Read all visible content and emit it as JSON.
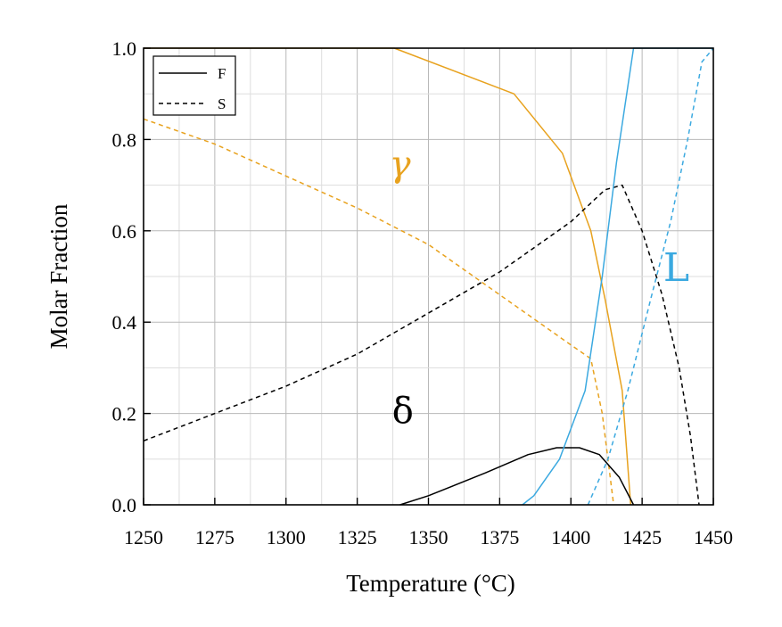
{
  "chart_data": {
    "type": "line",
    "title": "",
    "xlabel": "Temperature (°C)",
    "ylabel": "Molar Fraction",
    "xlim": [
      1250,
      1450
    ],
    "ylim": [
      0.0,
      1.0
    ],
    "x_ticks": [
      "1250",
      "1275",
      "1300",
      "1325",
      "1350",
      "1375",
      "1400",
      "1425",
      "1450"
    ],
    "y_ticks": [
      "0.0",
      "0.2",
      "0.4",
      "0.6",
      "0.8",
      "1.0"
    ],
    "grid": true,
    "legend": {
      "position": "top-left",
      "entries": [
        {
          "label": "F",
          "style": "solid"
        },
        {
          "label": "S",
          "style": "dashed"
        }
      ]
    },
    "annotations": [
      {
        "text": "γ",
        "x": 1340,
        "y": 0.72,
        "color": "#E8A21E",
        "size": 40
      },
      {
        "text": "δ",
        "x": 1341,
        "y": 0.18,
        "color": "#000000",
        "size": 40
      },
      {
        "text": "L",
        "x": 1437,
        "y": 0.49,
        "color": "#3BA9E0",
        "size": 44
      }
    ],
    "colors": {
      "gamma": "#E8A21E",
      "delta": "#000000",
      "liquid": "#3BA9E0"
    },
    "series": [
      {
        "phase": "γ",
        "style": "solid",
        "color": "#E8A21E",
        "x": [
          1250,
          1338,
          1380,
          1397,
          1407,
          1412,
          1418,
          1421
        ],
        "y": [
          1.0,
          1.0,
          0.9,
          0.77,
          0.6,
          0.45,
          0.25,
          0.0
        ]
      },
      {
        "phase": "γ",
        "style": "dashed",
        "color": "#E8A21E",
        "x": [
          1250,
          1275,
          1300,
          1325,
          1350,
          1375,
          1400,
          1407,
          1411,
          1413,
          1415
        ],
        "y": [
          0.845,
          0.79,
          0.72,
          0.65,
          0.57,
          0.46,
          0.35,
          0.32,
          0.2,
          0.1,
          0.0
        ]
      },
      {
        "phase": "δ",
        "style": "solid",
        "color": "#000000",
        "x": [
          1340,
          1350,
          1370,
          1385,
          1395,
          1403,
          1410,
          1417,
          1422
        ],
        "y": [
          0.0,
          0.02,
          0.07,
          0.11,
          0.125,
          0.125,
          0.11,
          0.06,
          0.0
        ]
      },
      {
        "phase": "δ",
        "style": "dashed",
        "color": "#000000",
        "x": [
          1250,
          1275,
          1300,
          1325,
          1350,
          1375,
          1400,
          1412,
          1418,
          1425,
          1432,
          1438,
          1442,
          1445
        ],
        "y": [
          0.14,
          0.2,
          0.26,
          0.33,
          0.42,
          0.51,
          0.62,
          0.69,
          0.7,
          0.6,
          0.46,
          0.3,
          0.15,
          0.0
        ]
      },
      {
        "phase": "L",
        "style": "solid",
        "color": "#3BA9E0",
        "x": [
          1383,
          1387,
          1396,
          1405,
          1411,
          1416,
          1422,
          1450
        ],
        "y": [
          0.0,
          0.02,
          0.1,
          0.25,
          0.5,
          0.75,
          1.0,
          1.0
        ]
      },
      {
        "phase": "L",
        "style": "dashed",
        "color": "#3BA9E0",
        "x": [
          1406,
          1413,
          1420,
          1428,
          1435,
          1441,
          1446,
          1450
        ],
        "y": [
          0.0,
          0.1,
          0.25,
          0.45,
          0.62,
          0.8,
          0.97,
          1.0
        ]
      }
    ]
  }
}
